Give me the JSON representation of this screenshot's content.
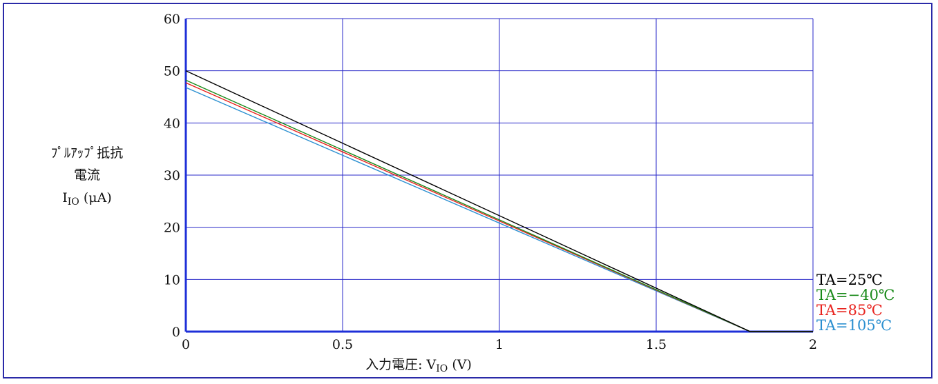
{
  "chart_data": {
    "type": "line",
    "x_ticks": [
      "0",
      "0.5",
      "1",
      "1.5",
      "2"
    ],
    "y_ticks": [
      "0",
      "10",
      "20",
      "30",
      "40",
      "50",
      "60"
    ],
    "xlim": [
      0,
      2
    ],
    "ylim": [
      0,
      60
    ],
    "grid": true,
    "xlabel": {
      "main": "入力電圧: V",
      "sub": "IO",
      "unit": " (V)"
    },
    "ylabel": {
      "line1": "ﾌﾟﾙｱｯﾌﾟ抵抗",
      "line2": "電流",
      "main": "I",
      "sub": "IO",
      "unit": " (μA)"
    },
    "legend_position": "right",
    "series": [
      {
        "name": "TA=25℃",
        "color": "#000000",
        "x": [
          0,
          1.8,
          2
        ],
        "y": [
          50,
          0,
          0
        ]
      },
      {
        "name": "TA=−40℃",
        "color": "#1a8a1a",
        "x": [
          0,
          1.8,
          2
        ],
        "y": [
          48.2,
          0,
          0
        ]
      },
      {
        "name": "TA=85℃",
        "color": "#e8231e",
        "x": [
          0,
          1.8,
          2
        ],
        "y": [
          47.7,
          0,
          0
        ]
      },
      {
        "name": "TA=105℃",
        "color": "#2a8fd0",
        "x": [
          0,
          1.8,
          2
        ],
        "y": [
          46.8,
          0,
          0
        ]
      }
    ]
  },
  "colors": {
    "grid": "#2727c8",
    "axis": "#1e2fd8",
    "frame": "#2a2aa8"
  }
}
